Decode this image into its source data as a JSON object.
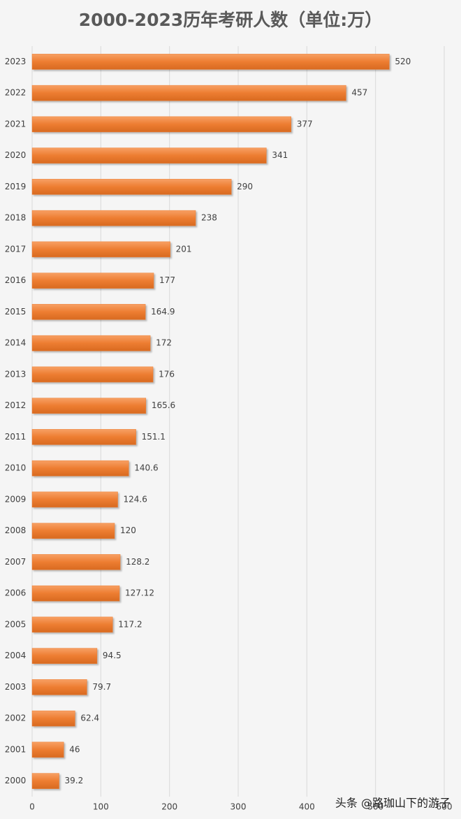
{
  "chart_data": {
    "type": "barh",
    "title": "2000-2023历年考研人数（单位:万）",
    "categories": [
      "2023",
      "2022",
      "2021",
      "2020",
      "2019",
      "2018",
      "2017",
      "2016",
      "2015",
      "2014",
      "2013",
      "2012",
      "2011",
      "2010",
      "2009",
      "2008",
      "2007",
      "2006",
      "2005",
      "2004",
      "2003",
      "2002",
      "2001",
      "2000"
    ],
    "values": [
      520,
      457,
      377,
      341,
      290,
      238,
      201,
      177,
      164.9,
      172,
      176,
      165.6,
      151.1,
      140.6,
      124.6,
      120,
      128.2,
      127.12,
      117.2,
      94.5,
      79.7,
      62.4,
      46,
      39.2
    ],
    "color": "#ed7d31",
    "xlim": [
      0,
      600
    ],
    "xticks": [
      0,
      100,
      200,
      300,
      400,
      500,
      600
    ],
    "grid": true
  },
  "watermark": "头条 @路珈山下的游子"
}
